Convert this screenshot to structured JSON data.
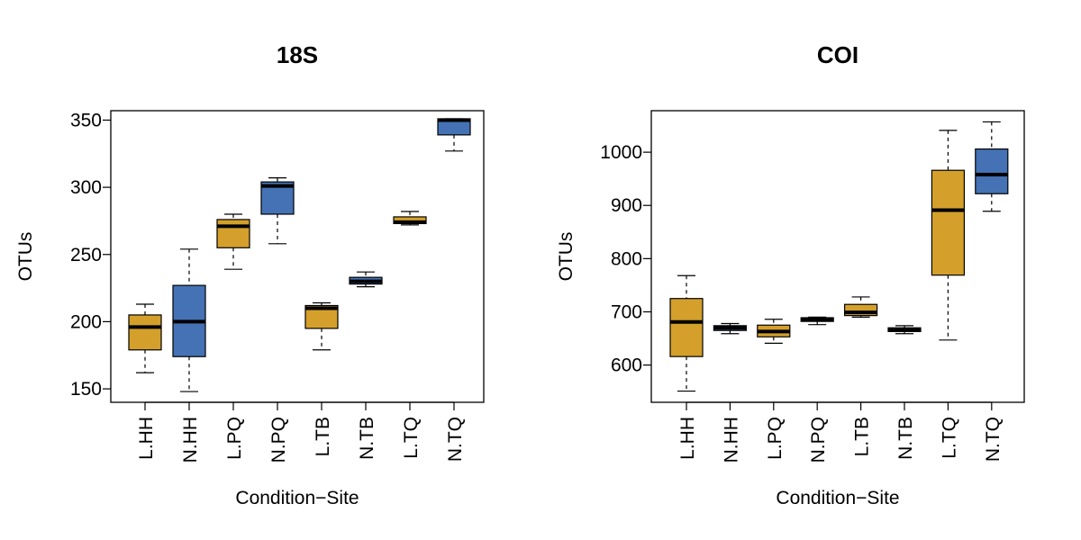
{
  "chart_data": [
    {
      "type": "box",
      "title": "18S",
      "xlabel": "Condition−Site",
      "ylabel": "OTUs",
      "ylim": [
        140,
        357
      ],
      "yticks": [
        150,
        200,
        250,
        300,
        350
      ],
      "categories": [
        "L.HH",
        "N.HH",
        "L.PQ",
        "N.PQ",
        "L.TB",
        "N.TB",
        "L.TQ",
        "N.TQ"
      ],
      "boxes": [
        {
          "min": 162,
          "q1": 179,
          "median": 196,
          "q3": 205,
          "max": 213,
          "color": "#d4a02b"
        },
        {
          "min": 148,
          "q1": 174,
          "median": 200,
          "q3": 227,
          "max": 254,
          "color": "#4472b4"
        },
        {
          "min": 239,
          "q1": 255,
          "median": 271,
          "q3": 276,
          "max": 280,
          "color": "#d4a02b"
        },
        {
          "min": 258,
          "q1": 280,
          "median": 301,
          "q3": 304,
          "max": 307,
          "color": "#4472b4"
        },
        {
          "min": 179,
          "q1": 195,
          "median": 210,
          "q3": 212,
          "max": 214,
          "color": "#d4a02b"
        },
        {
          "min": 226,
          "q1": 228,
          "median": 230,
          "q3": 233,
          "max": 237,
          "color": "#4472b4"
        },
        {
          "min": 272,
          "q1": 273,
          "median": 274,
          "q3": 278,
          "max": 282,
          "color": "#d4a02b"
        },
        {
          "min": 327,
          "q1": 339,
          "median": 350,
          "q3": 351,
          "max": 351,
          "color": "#4472b4"
        }
      ]
    },
    {
      "type": "box",
      "title": "COI",
      "xlabel": "Condition−Site",
      "ylabel": "OTUs",
      "ylim": [
        530,
        1078
      ],
      "yticks": [
        600,
        700,
        800,
        900,
        1000
      ],
      "categories": [
        "L.HH",
        "N.HH",
        "L.PQ",
        "N.PQ",
        "L.TB",
        "N.TB",
        "L.TQ",
        "N.TQ"
      ],
      "boxes": [
        {
          "min": 551,
          "q1": 616,
          "median": 681,
          "q3": 725,
          "max": 768,
          "color": "#d4a02b"
        },
        {
          "min": 659,
          "q1": 665,
          "median": 670,
          "q3": 674,
          "max": 678,
          "color": "#4472b4"
        },
        {
          "min": 641,
          "q1": 653,
          "median": 663,
          "q3": 675,
          "max": 686,
          "color": "#d4a02b"
        },
        {
          "min": 676,
          "q1": 682,
          "median": 686,
          "q3": 689,
          "max": 690,
          "color": "#4472b4"
        },
        {
          "min": 690,
          "q1": 693,
          "median": 699,
          "q3": 714,
          "max": 728,
          "color": "#d4a02b"
        },
        {
          "min": 659,
          "q1": 663,
          "median": 667,
          "q3": 670,
          "max": 674,
          "color": "#4472b4"
        },
        {
          "min": 647,
          "q1": 769,
          "median": 891,
          "q3": 966,
          "max": 1041,
          "color": "#d4a02b"
        },
        {
          "min": 889,
          "q1": 922,
          "median": 958,
          "q3": 1006,
          "max": 1057,
          "color": "#4472b4"
        }
      ]
    }
  ]
}
